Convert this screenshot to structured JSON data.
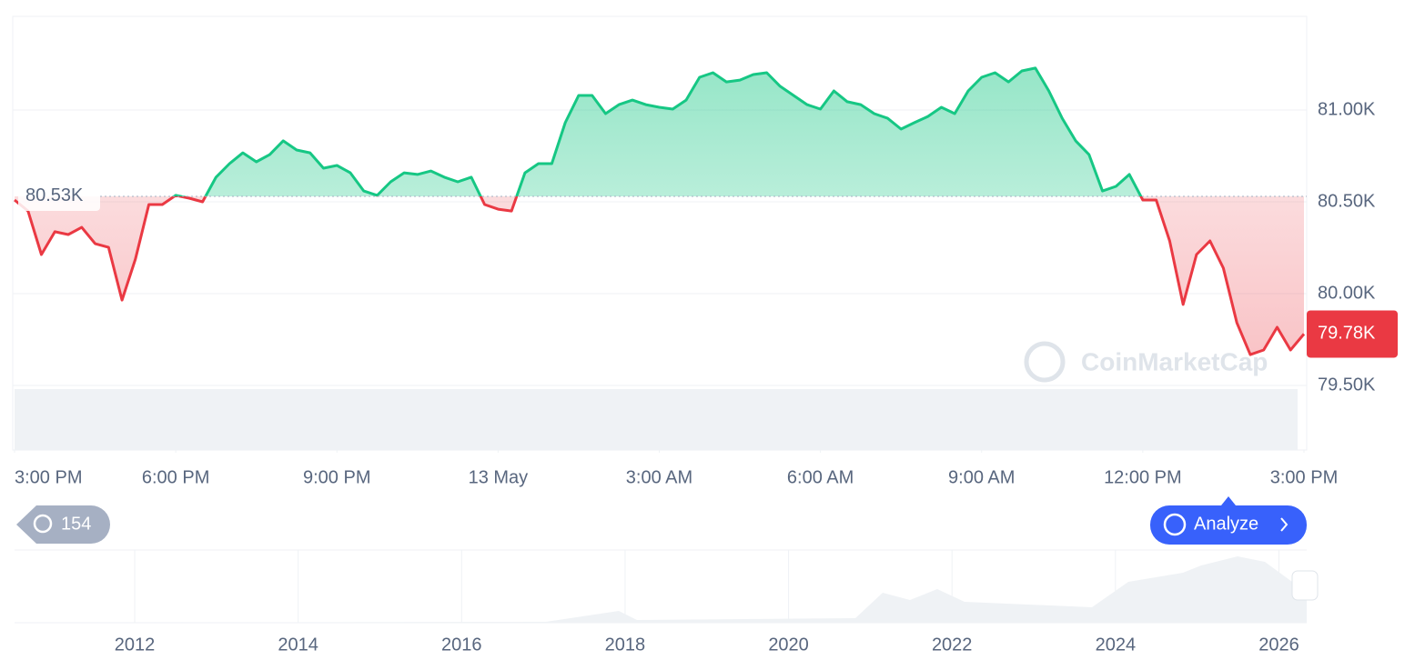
{
  "chart_data": {
    "type": "line",
    "x": [
      0,
      0.25,
      0.5,
      0.75,
      1,
      1.25,
      1.5,
      1.75,
      2,
      2.25,
      2.5,
      2.75,
      3,
      3.25,
      3.5,
      3.75,
      4,
      4.25,
      4.5,
      4.75,
      5,
      5.25,
      5.5,
      5.75,
      6,
      6.25,
      6.5,
      6.75,
      7,
      7.25,
      7.5,
      7.75,
      8,
      8.25,
      8.5,
      8.75,
      9,
      9.25,
      9.5,
      9.75,
      10,
      10.25,
      10.5,
      10.75,
      11,
      11.25,
      11.5,
      11.75,
      12,
      12.25,
      12.5,
      12.75,
      13,
      13.25,
      13.5,
      13.75,
      14,
      14.25,
      14.5,
      14.75,
      15,
      15.25,
      15.5,
      15.75,
      16,
      16.25,
      16.5,
      16.75,
      17,
      17.25,
      17.5,
      17.75,
      18,
      18.25,
      18.5,
      18.75,
      19,
      19.25,
      19.5,
      19.75,
      20,
      20.25,
      20.5,
      20.75,
      21,
      21.25,
      21.5,
      21.75,
      22,
      22.25,
      22.5,
      22.75,
      23,
      23.25,
      23.5,
      23.75,
      24
    ],
    "series": [
      {
        "up_color": "#16c784",
        "down_color": "#ea3943",
        "values": [
          80510,
          80450,
          80213,
          80337,
          80322,
          80361,
          80272,
          80252,
          79965,
          80188,
          80485,
          80485,
          80535,
          80520,
          80500,
          80634,
          80708,
          80767,
          80718,
          80757,
          80832,
          80782,
          80767,
          80683,
          80698,
          80658,
          80559,
          80535,
          80609,
          80658,
          80649,
          80668,
          80634,
          80609,
          80634,
          80485,
          80460,
          80450,
          80658,
          80708,
          80708,
          80931,
          81079,
          81079,
          80980,
          81029,
          81054,
          81029,
          81015,
          81005,
          81054,
          81178,
          81203,
          81153,
          81163,
          81193,
          81203,
          81129,
          81079,
          81029,
          81005,
          81104,
          81045,
          81029,
          80980,
          80955,
          80896,
          80931,
          80965,
          81015,
          80980,
          81104,
          81178,
          81203,
          81153,
          81213,
          81228,
          81104,
          80955,
          80832,
          80757,
          80559,
          80584,
          80649,
          80510,
          80510,
          80287,
          79941,
          80213,
          80287,
          80139,
          79842,
          79668,
          79693,
          79817,
          79693,
          79780
        ]
      }
    ],
    "baseline": {
      "value": 80530,
      "label": "80.53K"
    },
    "current_price": {
      "value": 79780,
      "label": "79.78K"
    },
    "xlim": [
      0,
      24
    ],
    "xticks": [
      {
        "value": 0,
        "label": "3:00 PM"
      },
      {
        "value": 3,
        "label": "6:00 PM"
      },
      {
        "value": 6,
        "label": "9:00 PM"
      },
      {
        "value": 9,
        "label": "13 May"
      },
      {
        "value": 12,
        "label": "3:00 AM"
      },
      {
        "value": 15,
        "label": "6:00 AM"
      },
      {
        "value": 18,
        "label": "9:00 AM"
      },
      {
        "value": 21,
        "label": "12:00 PM"
      },
      {
        "value": 24,
        "label": "3:00 PM"
      }
    ],
    "ylim": [
      79480,
      81510
    ],
    "yticks": [
      {
        "value": 79500,
        "label": "79.50K"
      },
      {
        "value": 80000,
        "label": "80.00K"
      },
      {
        "value": 80500,
        "label": "80.50K"
      },
      {
        "value": 81000,
        "label": "81.00K"
      }
    ],
    "grid": true,
    "watermark": "CoinMarketCap",
    "navigator": {
      "xlim": [
        2010.53,
        2026.34
      ],
      "xticks": [
        2012,
        2014,
        2016,
        2018,
        2020,
        2022,
        2024,
        2026
      ]
    }
  },
  "controls": {
    "history_count": "154",
    "analyze": "Analyze"
  }
}
